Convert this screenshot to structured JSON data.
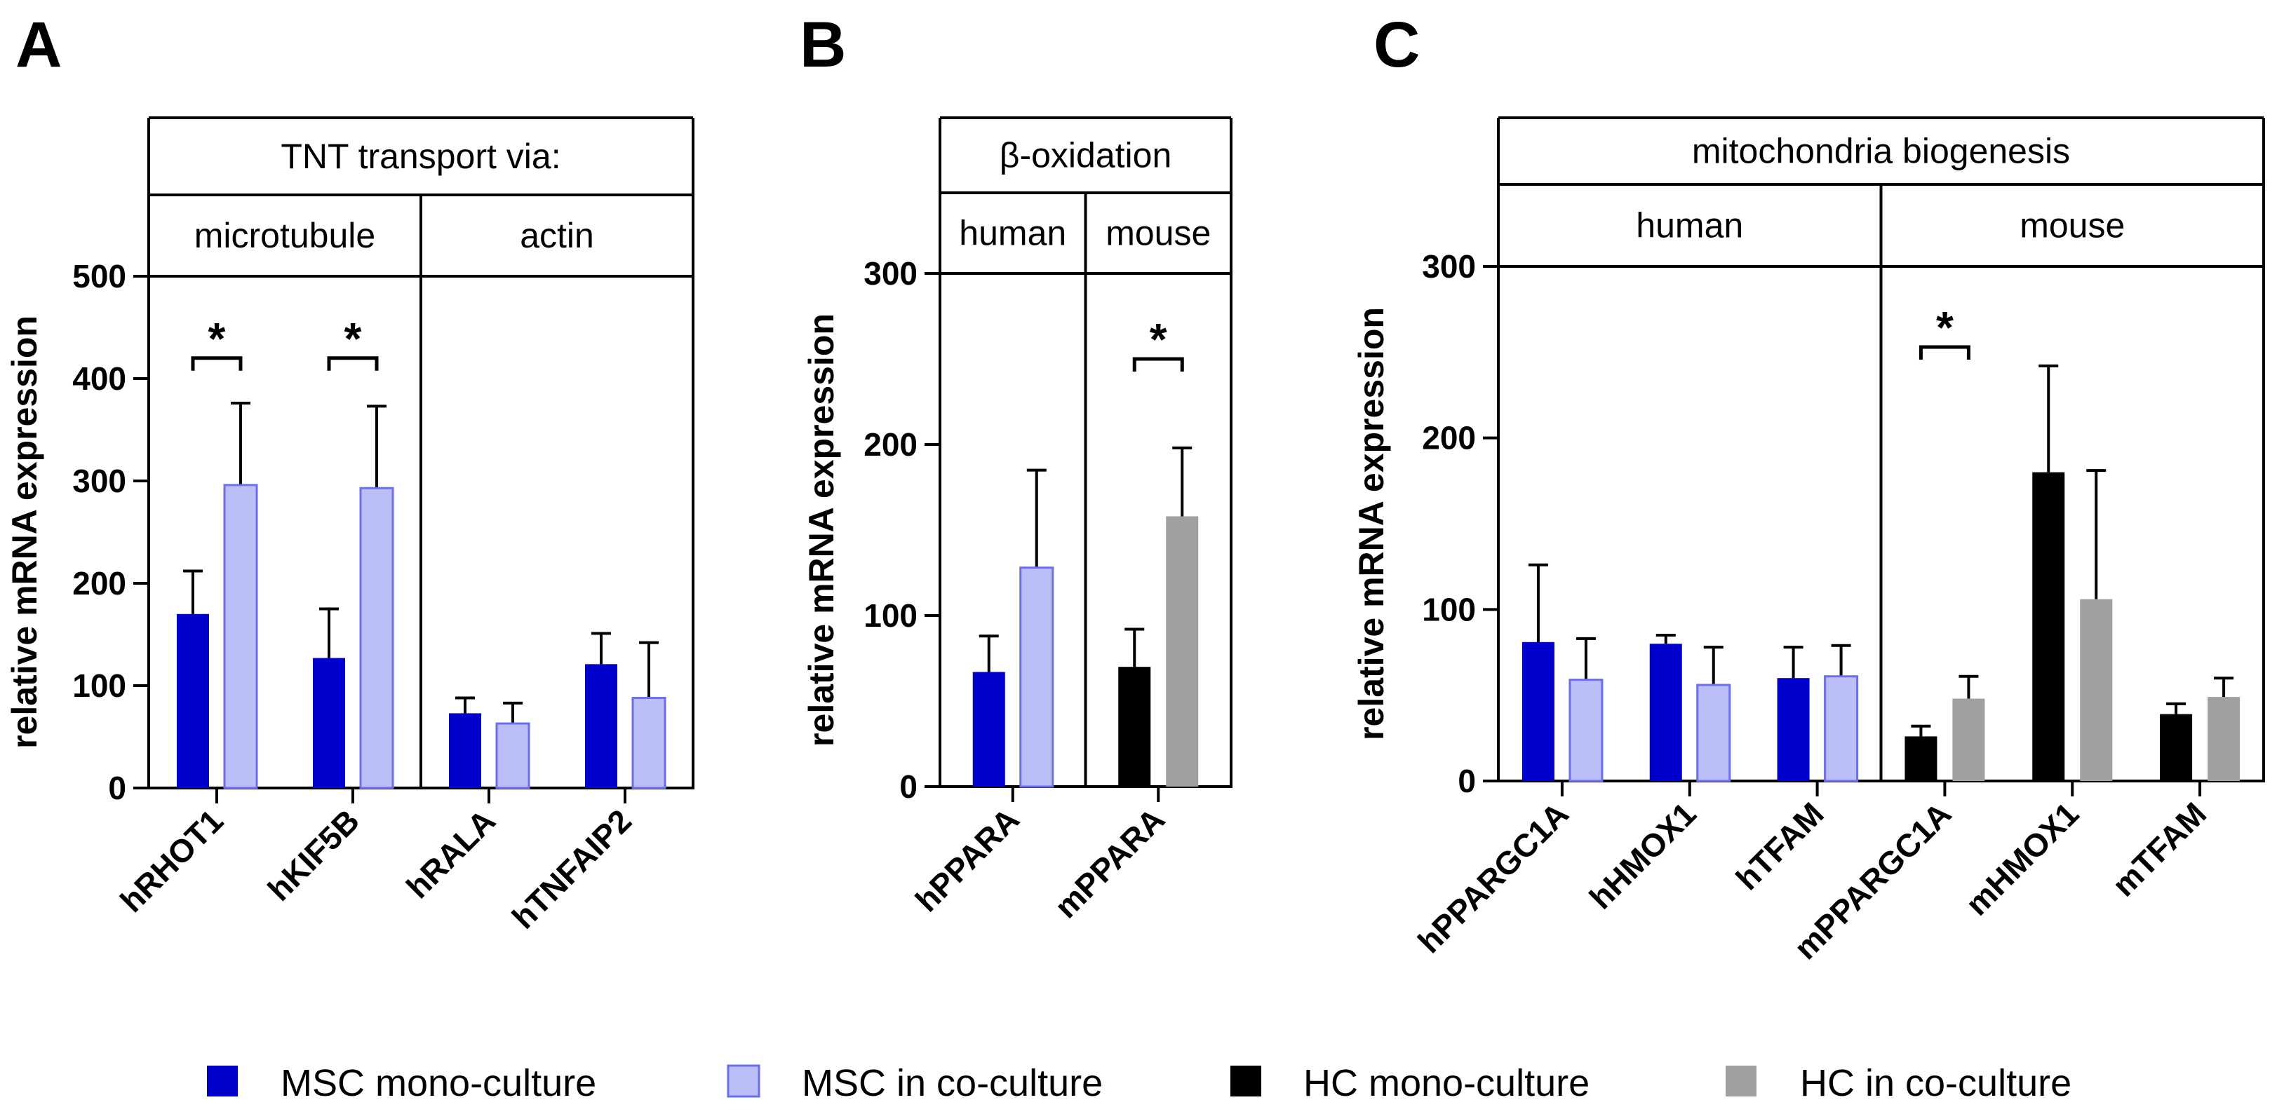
{
  "colors": {
    "msc_mono": "#0000CC",
    "msc_co": "#BCBEF7",
    "msc_co_edge": "#6B6EF0",
    "hc_mono": "#000000",
    "hc_co": "#A0A0A0"
  },
  "legend": [
    {
      "label": "MSC mono-culture",
      "color_key": "msc_mono"
    },
    {
      "label": "MSC in co-culture",
      "color_key": "msc_co"
    },
    {
      "label": "HC mono-culture",
      "color_key": "hc_mono"
    },
    {
      "label": "HC in co-culture",
      "color_key": "hc_co"
    }
  ],
  "chart_data": [
    {
      "panel": "A",
      "type": "bar",
      "header": "TNT transport via:",
      "subheaders": [
        {
          "label": "microtubule",
          "categories": [
            "hRHOT1",
            "hKIF5B"
          ]
        },
        {
          "label": "actin",
          "categories": [
            "hRALA",
            "hTNFAIP2"
          ]
        }
      ],
      "ylabel": "relative mRNA expression",
      "ylim": [
        0,
        500
      ],
      "yticks": [
        0,
        100,
        200,
        300,
        400,
        500
      ],
      "categories": [
        "hRHOT1",
        "hKIF5B",
        "hRALA",
        "hTNFAIP2"
      ],
      "series": [
        {
          "name": "MSC mono-culture",
          "color_key": "msc_mono",
          "values": [
            170,
            127,
            73,
            121
          ],
          "errors": [
            42,
            48,
            15,
            30
          ]
        },
        {
          "name": "MSC in co-culture",
          "color_key": "msc_co",
          "values": [
            296,
            293,
            63,
            88
          ],
          "errors": [
            80,
            80,
            20,
            54
          ]
        }
      ],
      "significance": [
        {
          "category": "hRHOT1",
          "label": "*",
          "y": 420
        },
        {
          "category": "hKIF5B",
          "label": "*",
          "y": 420
        }
      ]
    },
    {
      "panel": "B",
      "type": "bar",
      "header": "β-oxidation",
      "subheaders": [
        {
          "label": "human",
          "categories": [
            "hPPARA"
          ]
        },
        {
          "label": "mouse",
          "categories": [
            "mPPARA"
          ]
        }
      ],
      "ylabel": "relative mRNA expression",
      "ylim": [
        0,
        300
      ],
      "yticks": [
        0,
        100,
        200,
        300
      ],
      "categories": [
        "hPPARA",
        "mPPARA"
      ],
      "series": [
        {
          "name": "mono-culture",
          "color_keys": [
            "msc_mono",
            "hc_mono"
          ],
          "values": [
            67,
            70
          ],
          "errors": [
            21,
            22
          ]
        },
        {
          "name": "in co-culture",
          "color_keys": [
            "msc_co",
            "hc_co"
          ],
          "values": [
            128,
            158
          ],
          "errors": [
            57,
            40
          ]
        }
      ],
      "significance": [
        {
          "category": "mPPARA",
          "label": "*",
          "y": 250
        }
      ]
    },
    {
      "panel": "C",
      "type": "bar",
      "header": "mitochondria biogenesis",
      "subheaders": [
        {
          "label": "human",
          "categories": [
            "hPPARGC1A",
            "hHMOX1",
            "hTFAM"
          ]
        },
        {
          "label": "mouse",
          "categories": [
            "mPPARGC1A",
            "mHMOX1",
            "mTFAM"
          ]
        }
      ],
      "ylabel": "relative mRNA expression",
      "ylim": [
        0,
        300
      ],
      "yticks": [
        0,
        100,
        200,
        300
      ],
      "categories": [
        "hPPARGC1A",
        "hHMOX1",
        "hTFAM",
        "mPPARGC1A",
        "mHMOX1",
        "mTFAM"
      ],
      "series": [
        {
          "name": "mono-culture",
          "color_keys": [
            "msc_mono",
            "msc_mono",
            "msc_mono",
            "hc_mono",
            "hc_mono",
            "hc_mono"
          ],
          "values": [
            81,
            80,
            60,
            26,
            180,
            39
          ],
          "errors": [
            45,
            5,
            18,
            6,
            62,
            6
          ]
        },
        {
          "name": "in co-culture",
          "color_keys": [
            "msc_co",
            "msc_co",
            "msc_co",
            "hc_co",
            "hc_co",
            "hc_co"
          ],
          "values": [
            59,
            56,
            61,
            48,
            106,
            49
          ],
          "errors": [
            24,
            22,
            18,
            13,
            75,
            11
          ]
        }
      ],
      "significance": [
        {
          "category": "mPPARGC1A",
          "label": "*",
          "y": 253
        }
      ]
    }
  ]
}
